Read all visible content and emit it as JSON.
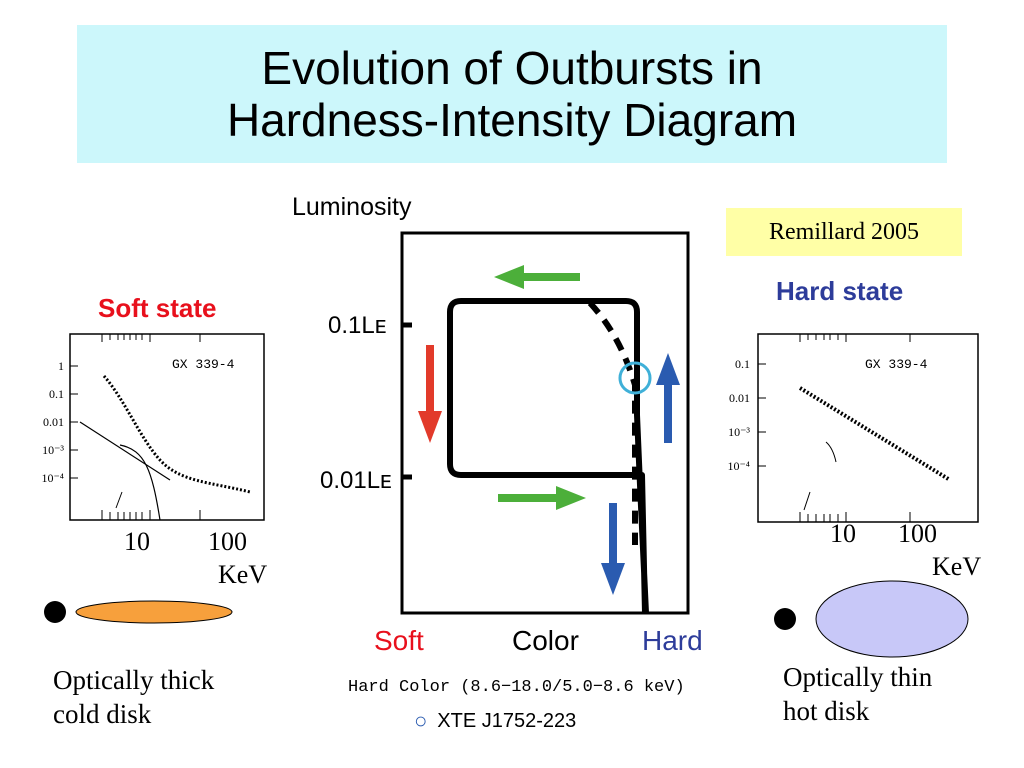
{
  "title": {
    "line1": "Evolution of Outbursts in",
    "line2": "Hardness-Intensity Diagram"
  },
  "reference": "Remillard 2005",
  "soft_state": {
    "label": "Soft state",
    "source": "GX 339-4",
    "y_ticks": [
      "1",
      "0.1",
      "0.01",
      "10⁻³",
      "10⁻⁴"
    ],
    "x_ticks": [
      "10",
      "100"
    ],
    "x_unit": "KeV",
    "caption": [
      "Optically thick",
      "cold disk"
    ],
    "disk_color": "#f7a03c"
  },
  "hard_state": {
    "label": "Hard state",
    "source": "GX 339-4",
    "y_ticks": [
      "0.1",
      "0.01",
      "10⁻³",
      "10⁻⁴"
    ],
    "x_ticks": [
      "10",
      "100"
    ],
    "x_unit": "KeV",
    "caption": [
      "Optically thin",
      "hot disk"
    ],
    "disk_color": "#c8c8f8"
  },
  "hid": {
    "y_axis_label": "Luminosity",
    "y_ticks": [
      "0.1Lᴇ",
      "0.01Lᴇ"
    ],
    "x_soft": "Soft",
    "x_color": "Color",
    "x_hard": "Hard",
    "hard_color_label": "Hard Color (8.6−18.0/5.0−8.6 keV)",
    "legend_marker": "○",
    "legend_label": "XTE J1752-223",
    "colors": {
      "green": "#4caf3a",
      "red": "#e23a2a",
      "blue": "#2a5bb0",
      "circle": "#3fb0d8",
      "soft": "#e8101c",
      "hard": "#2d3c9a"
    }
  }
}
